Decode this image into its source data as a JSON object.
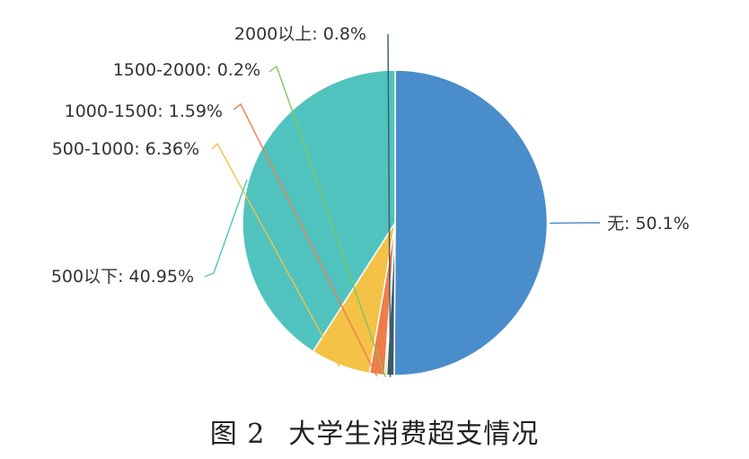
{
  "chart_data": {
    "type": "pie",
    "slices": [
      {
        "label": "无",
        "value": 50.1,
        "label_text": "无: 50.1%",
        "color": "#4a8dcb"
      },
      {
        "label": "2000以上",
        "value": 0.8,
        "label_text": "2000以上: 0.8%",
        "color": "#3f5a66"
      },
      {
        "label": "1500-2000",
        "value": 0.2,
        "label_text": "1500-2000: 0.2%",
        "color": "#7fc75a"
      },
      {
        "label": "1000-1500",
        "value": 1.59,
        "label_text": "1000-1500: 1.59%",
        "color": "#f07c4a"
      },
      {
        "label": "500-1000",
        "value": 6.36,
        "label_text": "500-1000: 6.36%",
        "color": "#f3c247"
      },
      {
        "label": "500以下",
        "value": 40.95,
        "label_text": "500以下: 40.95%",
        "color": "#51c3bf"
      }
    ]
  },
  "caption": {
    "number": "图 2",
    "title": "大学生消费超支情况"
  }
}
